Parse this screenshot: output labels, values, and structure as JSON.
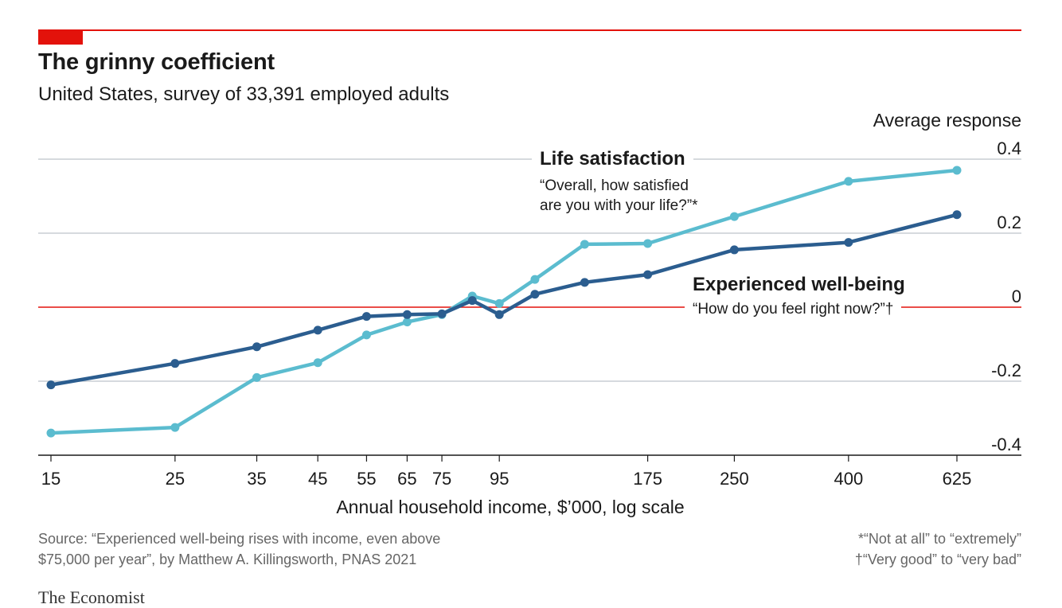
{
  "title": "The grinny coefficient",
  "subtitle": "United States, survey of 33,391 employed adults",
  "source_line1": "Source: “Experienced well-being rises with income, even above",
  "source_line2": "$75,000 per year”, by Matthew A. Killingsworth, PNAS 2021",
  "footnote1": "*“Not at all” to “extremely”",
  "footnote2": "†“Very good” to “very bad”",
  "brand": "The Economist",
  "colors": {
    "accent": "#e3120b",
    "life": "#5bbccf",
    "experienced": "#2b5d8f",
    "grid": "#c8ced4"
  },
  "annotations": {
    "life_label": "Life satisfaction",
    "life_q1": "“Overall, how satisfied",
    "life_q2": "are you with your life?”*",
    "exp_label": "Experienced well-being",
    "exp_q": "“How do you feel right now?”†"
  },
  "chart_data": {
    "type": "line",
    "title": "The grinny coefficient",
    "subtitle": "United States, survey of 33,391 employed adults",
    "xlabel": "Annual household income, $’000, log scale",
    "ylabel": "Average response",
    "x_scale": "log",
    "xlim": [
      14,
      900
    ],
    "ylim": [
      -0.4,
      0.4
    ],
    "x_ticks": [
      15,
      25,
      35,
      45,
      55,
      65,
      75,
      95,
      175,
      250,
      400,
      625
    ],
    "y_ticks": [
      0.4,
      0.2,
      0,
      -0.2,
      -0.4
    ],
    "y_tick_labels": [
      "0.4",
      "0.2",
      "0",
      "-0.2",
      "-0.4"
    ],
    "grid": true,
    "series": [
      {
        "name": "Life satisfaction",
        "x": [
          15,
          25,
          35,
          45,
          55,
          65,
          75,
          85,
          95,
          110,
          135,
          175,
          250,
          400,
          625
        ],
        "y": [
          -0.34,
          -0.325,
          -0.19,
          -0.15,
          -0.075,
          -0.04,
          -0.02,
          0.03,
          0.01,
          0.075,
          0.17,
          0.172,
          0.245,
          0.34,
          0.37
        ]
      },
      {
        "name": "Experienced well-being",
        "x": [
          15,
          25,
          35,
          45,
          55,
          65,
          75,
          85,
          95,
          110,
          135,
          175,
          250,
          400,
          625
        ],
        "y": [
          -0.21,
          -0.152,
          -0.107,
          -0.062,
          -0.025,
          -0.02,
          -0.018,
          0.018,
          -0.02,
          0.035,
          0.067,
          0.088,
          0.155,
          0.175,
          0.25
        ]
      }
    ]
  }
}
